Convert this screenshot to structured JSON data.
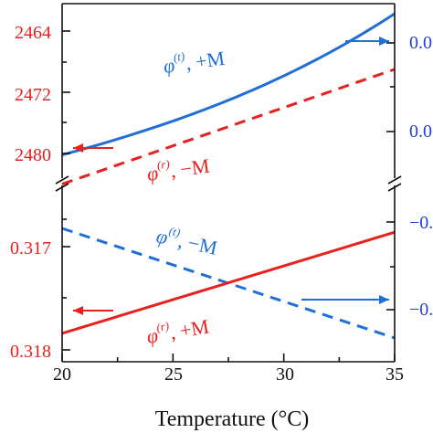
{
  "chart_data": {
    "type": "line",
    "xlabel": "Temperature (°C)",
    "xlim": [
      20,
      35
    ],
    "x_ticks": [
      "20",
      "25",
      "30",
      "35"
    ],
    "panels": [
      {
        "position": "upper",
        "left_axis": {
          "ticks": [
            "2464",
            "2472",
            "2480"
          ],
          "tick_values": [
            0.2464,
            0.2472,
            0.248
          ],
          "color": "#e8201f",
          "inverted": true
        },
        "right_axis": {
          "ticks": [
            "0.0",
            "0.0"
          ],
          "color": "#1f3fd6"
        },
        "series": [
          {
            "axis": "right",
            "color": "#1f6fd6",
            "style": "solid",
            "label_main": "φ",
            "label_sup": "(t)",
            "label_tail": ", +M",
            "x": [
              20,
              25,
              30,
              35
            ],
            "y": [
              0.2482,
              0.2476,
              0.2468,
              0.2457
            ]
          },
          {
            "axis": "left",
            "color": "#e8201f",
            "style": "dashed",
            "label_main": "φ",
            "label_sup": "(r)",
            "label_tail": ", −M",
            "x": [
              20,
              35
            ],
            "y": [
              0.2484,
              0.2469
            ]
          }
        ]
      },
      {
        "position": "lower",
        "left_axis": {
          "ticks": [
            "0.317",
            "0.318"
          ],
          "tick_values": [
            0.317,
            0.318
          ],
          "color": "#e8201f",
          "inverted": true
        },
        "right_axis": {
          "ticks": [
            "−0.",
            "−0."
          ],
          "color": "#1f3fd6"
        },
        "series": [
          {
            "axis": "right",
            "color": "#1f6fd6",
            "style": "dashed",
            "label_main": "φ",
            "label_sup": "(t)",
            "label_tail": ", −M",
            "x": [
              20,
              35
            ],
            "y": [
              0.31682,
              0.31789
            ]
          },
          {
            "axis": "left",
            "color": "#e8201f",
            "style": "solid",
            "label_main": "φ",
            "label_sup": "(r)",
            "label_tail": ", +M",
            "x": [
              20,
              35
            ],
            "y": [
              0.31784,
              0.31686
            ]
          }
        ]
      }
    ]
  }
}
